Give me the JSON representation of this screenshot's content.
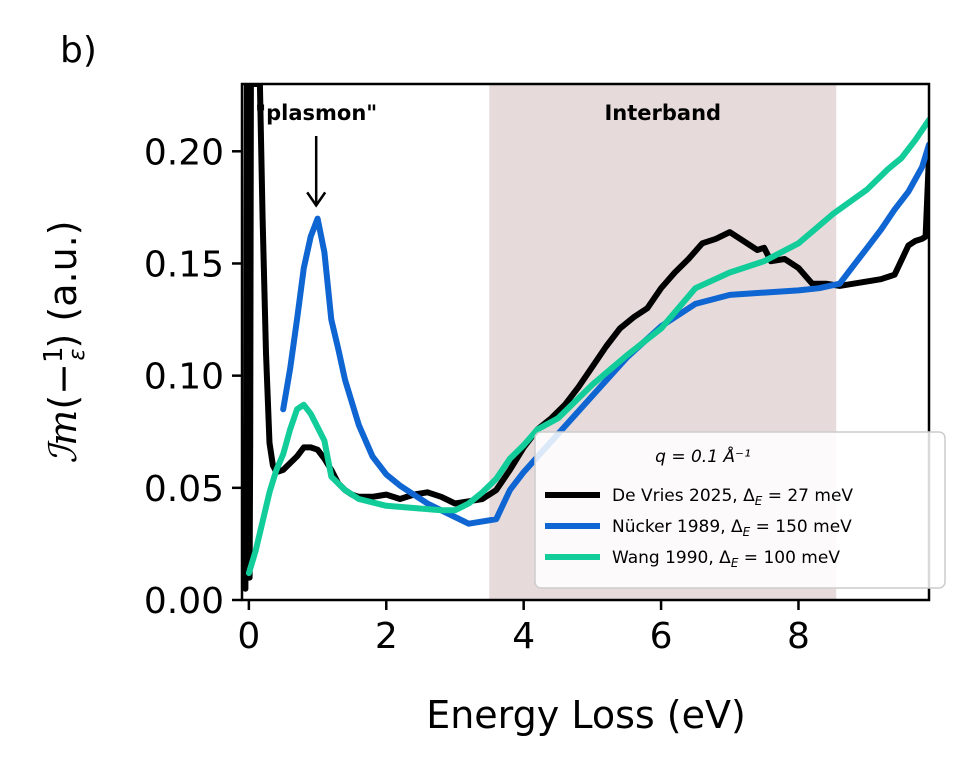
{
  "panel_label": "b)",
  "chart_data": {
    "type": "line",
    "title": "",
    "xlabel": "Energy Loss (eV)",
    "ylabel": "ℐm(−1/ε) (a.u.)",
    "xlim": [
      -0.1,
      9.9
    ],
    "ylim": [
      0.0,
      0.23
    ],
    "xticks": [
      0,
      2,
      4,
      6,
      8
    ],
    "yticks": [
      0.0,
      0.05,
      0.1,
      0.15,
      0.2
    ],
    "xtick_labels": [
      "0",
      "2",
      "4",
      "6",
      "8"
    ],
    "ytick_labels": [
      "0.00",
      "0.05",
      "0.10",
      "0.15",
      "0.20"
    ],
    "shaded_region": {
      "x0": 3.5,
      "x1": 8.55,
      "label": "Interband",
      "color": "#e6dbda"
    },
    "annotation": {
      "text": "\"plasmon\"",
      "x": 0.98,
      "y": 0.175
    },
    "legend": {
      "title": "q = 0.1 Å⁻¹",
      "placement": "lower-right"
    },
    "series": [
      {
        "name": "De Vries 2025",
        "label_suffix": "27 meV",
        "color": "#000000",
        "x": [
          -0.05,
          -0.04,
          -0.03,
          -0.02,
          -0.01,
          0.0,
          0.01,
          0.02,
          0.03,
          0.04,
          0.06,
          0.08,
          0.1,
          0.13,
          0.16,
          0.2,
          0.25,
          0.3,
          0.35,
          0.4,
          0.5,
          0.6,
          0.7,
          0.8,
          0.9,
          1.0,
          1.1,
          1.2,
          1.3,
          1.4,
          1.5,
          1.6,
          1.8,
          2.0,
          2.2,
          2.4,
          2.6,
          2.8,
          3.0,
          3.2,
          3.4,
          3.6,
          3.8,
          4.0,
          4.2,
          4.4,
          4.6,
          4.8,
          5.0,
          5.2,
          5.4,
          5.6,
          5.8,
          6.0,
          6.2,
          6.4,
          6.6,
          6.8,
          7.0,
          7.2,
          7.4,
          7.5,
          7.6,
          7.8,
          8.0,
          8.2,
          8.4,
          8.6,
          8.8,
          9.0,
          9.2,
          9.4,
          9.6,
          9.7,
          9.8,
          9.85,
          9.9
        ],
        "y": [
          0.005,
          0.08,
          0.23,
          0.23,
          0.08,
          0.01,
          0.01,
          0.07,
          0.23,
          0.23,
          0.23,
          0.23,
          0.23,
          0.23,
          0.23,
          0.17,
          0.11,
          0.07,
          0.06,
          0.057,
          0.058,
          0.061,
          0.064,
          0.068,
          0.068,
          0.067,
          0.063,
          0.058,
          0.052,
          0.049,
          0.047,
          0.046,
          0.046,
          0.047,
          0.045,
          0.047,
          0.048,
          0.046,
          0.043,
          0.044,
          0.045,
          0.049,
          0.058,
          0.068,
          0.076,
          0.081,
          0.087,
          0.095,
          0.104,
          0.113,
          0.121,
          0.126,
          0.13,
          0.139,
          0.146,
          0.152,
          0.159,
          0.161,
          0.164,
          0.16,
          0.156,
          0.157,
          0.151,
          0.152,
          0.148,
          0.141,
          0.141,
          0.14,
          0.141,
          0.142,
          0.143,
          0.145,
          0.158,
          0.16,
          0.161,
          0.162,
          0.198
        ]
      },
      {
        "name": "Nücker 1989",
        "label_suffix": "150 meV",
        "color": "#0f65d2",
        "x": [
          0.5,
          0.6,
          0.7,
          0.8,
          0.9,
          1.0,
          1.1,
          1.2,
          1.3,
          1.4,
          1.6,
          1.8,
          2.0,
          2.2,
          2.4,
          2.6,
          2.8,
          3.0,
          3.2,
          3.6,
          3.8,
          4.0,
          4.5,
          5.0,
          5.5,
          6.0,
          6.5,
          7.0,
          7.5,
          8.0,
          8.3,
          8.6,
          8.8,
          9.0,
          9.2,
          9.4,
          9.6,
          9.8,
          9.9
        ],
        "y": [
          0.085,
          0.103,
          0.125,
          0.148,
          0.162,
          0.17,
          0.155,
          0.125,
          0.112,
          0.098,
          0.078,
          0.064,
          0.056,
          0.051,
          0.047,
          0.043,
          0.04,
          0.037,
          0.034,
          0.036,
          0.049,
          0.057,
          0.074,
          0.091,
          0.108,
          0.122,
          0.132,
          0.136,
          0.137,
          0.138,
          0.139,
          0.141,
          0.149,
          0.157,
          0.165,
          0.174,
          0.182,
          0.193,
          0.203
        ]
      },
      {
        "name": "Wang 1990",
        "label_suffix": "100 meV",
        "color": "#12cc9a",
        "x": [
          0.0,
          0.1,
          0.2,
          0.3,
          0.4,
          0.5,
          0.6,
          0.7,
          0.8,
          0.9,
          1.0,
          1.1,
          1.2,
          1.4,
          1.6,
          2.0,
          2.4,
          2.8,
          3.0,
          3.2,
          3.4,
          3.6,
          3.8,
          4.0,
          4.2,
          4.5,
          5.0,
          5.5,
          6.0,
          6.5,
          7.0,
          7.5,
          8.0,
          8.5,
          9.0,
          9.3,
          9.5,
          9.7,
          9.9
        ],
        "y": [
          0.012,
          0.022,
          0.035,
          0.048,
          0.058,
          0.065,
          0.076,
          0.085,
          0.087,
          0.083,
          0.077,
          0.071,
          0.055,
          0.049,
          0.045,
          0.042,
          0.041,
          0.04,
          0.04,
          0.043,
          0.048,
          0.054,
          0.063,
          0.069,
          0.076,
          0.081,
          0.096,
          0.109,
          0.121,
          0.139,
          0.146,
          0.151,
          0.159,
          0.172,
          0.183,
          0.192,
          0.197,
          0.205,
          0.214
        ]
      }
    ]
  }
}
